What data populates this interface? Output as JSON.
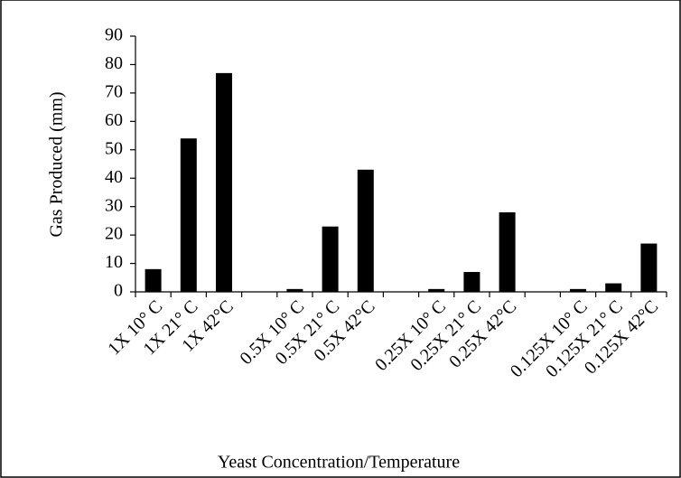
{
  "chart_data": {
    "type": "bar",
    "y_label": "Gas Produced (mm)",
    "x_label": "Yeast Concentration/Temperature",
    "categories": [
      "1X 10° C",
      "1X 21° C",
      "1X 42°C",
      null,
      "0.5X 10° C",
      "0.5X 21° C",
      "0.5X 42°C",
      null,
      "0.25X 10° C",
      "0.25X 21° C",
      "0.25X 42°C",
      null,
      "0.125X 10° C",
      "0.125X 21° C",
      "0.125X 42°C"
    ],
    "values": [
      8,
      54,
      77,
      null,
      1,
      23,
      43,
      null,
      1,
      7,
      28,
      null,
      1,
      3,
      17
    ],
    "color": "#000000",
    "ylim": [
      0,
      90
    ],
    "yticks": [
      0,
      10,
      20,
      30,
      40,
      50,
      60,
      70,
      80,
      90
    ],
    "grid": false
  }
}
